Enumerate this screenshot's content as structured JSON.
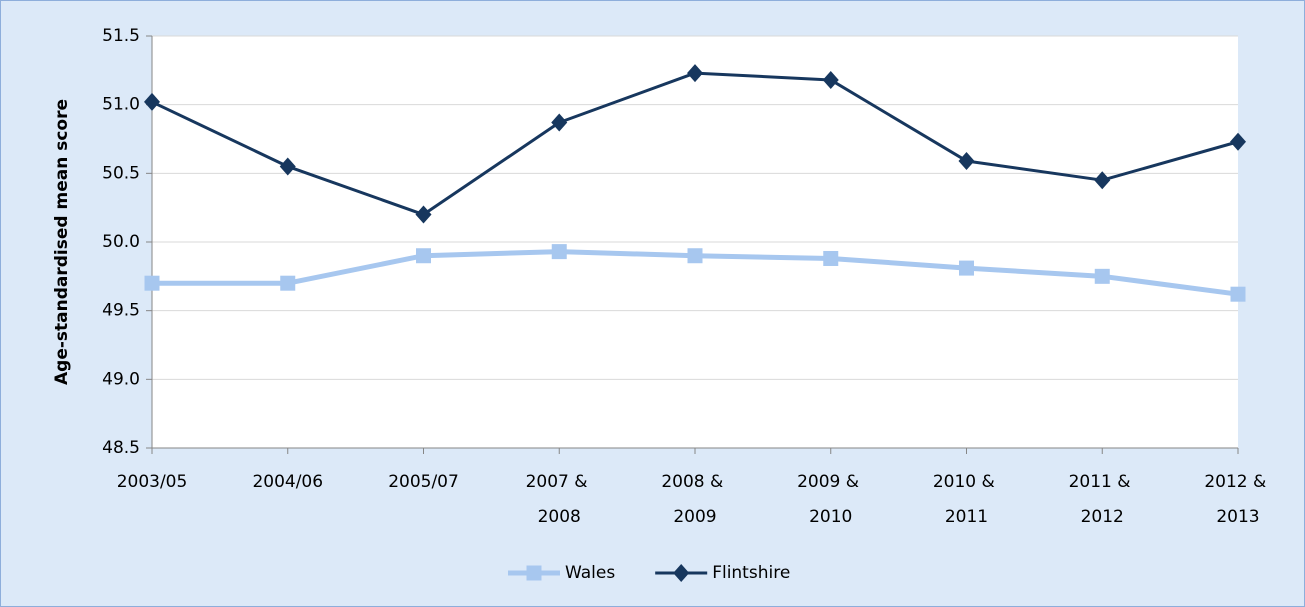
{
  "chart_data": {
    "type": "line",
    "y_label": "Age-standardised  mean score",
    "categories": [
      "2003/05",
      "2004/06",
      "2005/07",
      "2007 & 2008",
      "2008 & 2009",
      "2009 & 2010",
      "2010 & 2011",
      "2011 & 2012",
      "2012 & 2013"
    ],
    "series": [
      {
        "name": "Wales",
        "color": "#a7c7ef",
        "marker": "square",
        "values": [
          49.7,
          49.7,
          49.9,
          49.93,
          49.9,
          49.88,
          49.81,
          49.75,
          49.62
        ]
      },
      {
        "name": "Flintshire",
        "color": "#17375e",
        "marker": "diamond",
        "values": [
          51.02,
          50.55,
          50.2,
          50.87,
          51.23,
          51.18,
          50.59,
          50.45,
          50.73
        ]
      }
    ],
    "ylim": [
      48.5,
      51.5
    ],
    "yticks": [
      48.5,
      {
        "value": 49,
        "label": "49.0"
      },
      49.5,
      {
        "value": 50,
        "label": "50.0"
      },
      50.5,
      {
        "value": 51,
        "label": "51.0"
      },
      51.5
    ],
    "grid": true,
    "legend": "bottom"
  }
}
